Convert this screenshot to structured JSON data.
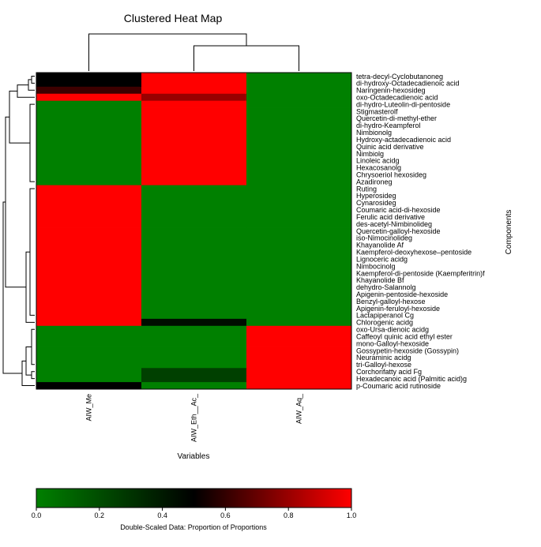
{
  "chart_data": {
    "type": "heatmap",
    "title": "Clustered Heat Map",
    "xlabel": "Variables",
    "ylabel": "Components",
    "columns": [
      "AIW_Me",
      "AIW_Eth__Ac_",
      "AIW_Aq_"
    ],
    "rows": [
      "tetra-decyl-Cyclobutanoneg",
      "di-hydroxy-Octadecadienoic acid",
      "Naringenin-hexosideg",
      "oxo-Octadecadienoic acid",
      "di-hydro-Luteolin-di-pentoside",
      "Stigmasterolf",
      "Quercetin-di-methyl-ether",
      "di-hydro-Keampferol",
      "Nimbionolg",
      "Hydroxy-actadecadienoic acid",
      "Quinic acid derivative",
      "Nimbiolg",
      "Linoleic acidg",
      "Hexacosanolg",
      "Chrysoeriol hexosideg",
      "Azadironeg",
      "Ruting",
      "Hyperosideg",
      "Cynarosideg",
      "Coumaric acid-di-hexoside",
      "Ferulic acid derivative",
      "des-acetyl-Nimbinolideg",
      "Quercetin-galloyl-hexoside",
      "iso-Nimocinolideg",
      "Khayanolide Af",
      "Kaempferol-deoxyhexose–pentoside",
      "Lignoceric acidg",
      "Nimbocinolg",
      "Kaempferol-di-pentoside (Kaempferitrin)f",
      "Khayanolide Bf",
      "dehydro-Salannolg",
      "Apigenin-pentoside-hexoside",
      "Benzyl-galloyl-hexose",
      "Apigenin-feruloyl-hexoside",
      "Lactapiperanol Cg",
      "Chlorogenic acidg",
      "oxo-Ursa-dienoic acidg",
      "Caffeoyl quinic acid ethyl ester",
      "mono-Galloyl-hexoside",
      "Gossypetin-hexoside (Gossypin)",
      "Neuraminic acidg",
      "tri-Galloyl-hexose",
      "Corchorifatty acid Fg",
      "Hexadecanoic acid (Palmitic acid)g",
      "p-Coumaric acid rutinoside"
    ],
    "values": [
      [
        0.5,
        1.0,
        0.0
      ],
      [
        0.5,
        1.0,
        0.0
      ],
      [
        0.62,
        1.0,
        0.0
      ],
      [
        1.0,
        0.8,
        0.0
      ],
      [
        0.0,
        1.0,
        0.0
      ],
      [
        0.0,
        1.0,
        0.0
      ],
      [
        0.0,
        1.0,
        0.0
      ],
      [
        0.0,
        1.0,
        0.0
      ],
      [
        0.0,
        1.0,
        0.0
      ],
      [
        0.0,
        1.0,
        0.0
      ],
      [
        0.0,
        1.0,
        0.0
      ],
      [
        0.0,
        1.0,
        0.0
      ],
      [
        0.0,
        1.0,
        0.0
      ],
      [
        0.0,
        1.0,
        0.0
      ],
      [
        0.0,
        1.0,
        0.0
      ],
      [
        0.0,
        1.0,
        0.0
      ],
      [
        1.0,
        0.0,
        0.0
      ],
      [
        1.0,
        0.0,
        0.0
      ],
      [
        1.0,
        0.0,
        0.0
      ],
      [
        1.0,
        0.0,
        0.0
      ],
      [
        1.0,
        0.0,
        0.0
      ],
      [
        1.0,
        0.0,
        0.0
      ],
      [
        1.0,
        0.0,
        0.0
      ],
      [
        1.0,
        0.0,
        0.0
      ],
      [
        1.0,
        0.0,
        0.0
      ],
      [
        1.0,
        0.0,
        0.0
      ],
      [
        1.0,
        0.0,
        0.0
      ],
      [
        1.0,
        0.0,
        0.0
      ],
      [
        1.0,
        0.0,
        0.0
      ],
      [
        1.0,
        0.0,
        0.0
      ],
      [
        1.0,
        0.0,
        0.0
      ],
      [
        1.0,
        0.0,
        0.0
      ],
      [
        1.0,
        0.0,
        0.0
      ],
      [
        1.0,
        0.0,
        0.0
      ],
      [
        1.0,
        0.0,
        0.0
      ],
      [
        1.0,
        0.45,
        0.0
      ],
      [
        0.0,
        0.0,
        1.0
      ],
      [
        0.0,
        0.0,
        1.0
      ],
      [
        0.0,
        0.0,
        1.0
      ],
      [
        0.0,
        0.0,
        1.0
      ],
      [
        0.0,
        0.0,
        1.0
      ],
      [
        0.0,
        0.0,
        1.0
      ],
      [
        0.0,
        0.25,
        1.0
      ],
      [
        0.0,
        0.25,
        1.0
      ],
      [
        0.5,
        0.0,
        1.0
      ]
    ],
    "colorbar": {
      "label": "Double-Scaled Data: Proportion of Proportions",
      "ticks": [
        "0.0",
        "0.2",
        "0.4",
        "0.6",
        "0.8",
        "1.0"
      ],
      "range": [
        0.0,
        1.0
      ],
      "colors": {
        "low": "#008000",
        "mid": "#000000",
        "high": "#ff0000"
      }
    },
    "legend": "bottom"
  }
}
